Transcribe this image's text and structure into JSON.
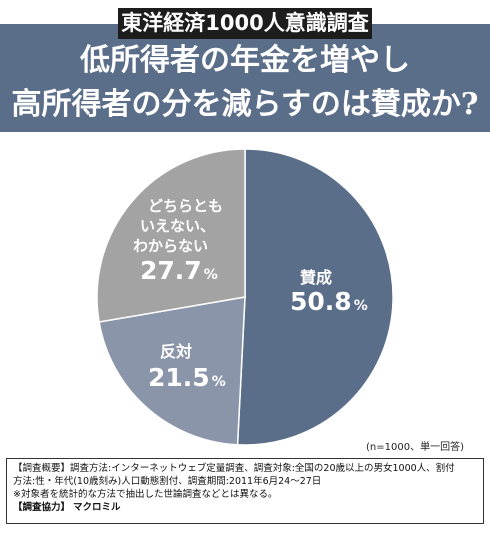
{
  "header": {
    "series_tag": "東洋経済1000人意識調査",
    "title_line1": "低所得者の年金を増やし",
    "title_line2": "高所得者の分を減らすのは賛成か?"
  },
  "chart_data": {
    "type": "pie",
    "title": "低所得者の年金を増やし高所得者の分を減らすのは賛成か?",
    "unit": "%",
    "slices": [
      {
        "label": "賛成",
        "value": 50.8,
        "color": "#5a6d89"
      },
      {
        "label": "反対",
        "value": 21.5,
        "color": "#8a95aa"
      },
      {
        "label": "どちらともいえない、わからない",
        "value": 27.7,
        "color": "#a3a3a3"
      }
    ],
    "labels": {
      "agree": {
        "name": "賛成",
        "value": "50.8",
        "unit": "%"
      },
      "disagree": {
        "name": "反対",
        "value": "21.5",
        "unit": "%"
      },
      "neutral": {
        "name_line1": "どちらとも",
        "name_line2": "いえない、",
        "name_line3": "わからない",
        "value": "27.7",
        "unit": "%"
      }
    }
  },
  "sample_note": "(n=1000、単一回答)",
  "footnote": {
    "line1": "【調査概要】調査方法:インターネットウェブ定量調査、調査対象:全国の20歳以上の男女1000人、割付",
    "line2": "方法:性・年代(10歳刻み)人口動態割付、調査期間:2011年6月24〜27日",
    "line3": "※対象者を統計的な方法で抽出した世論調査などとは異なる。",
    "line4_label": "【調査協力】",
    "line4_value": "マクロミル"
  }
}
